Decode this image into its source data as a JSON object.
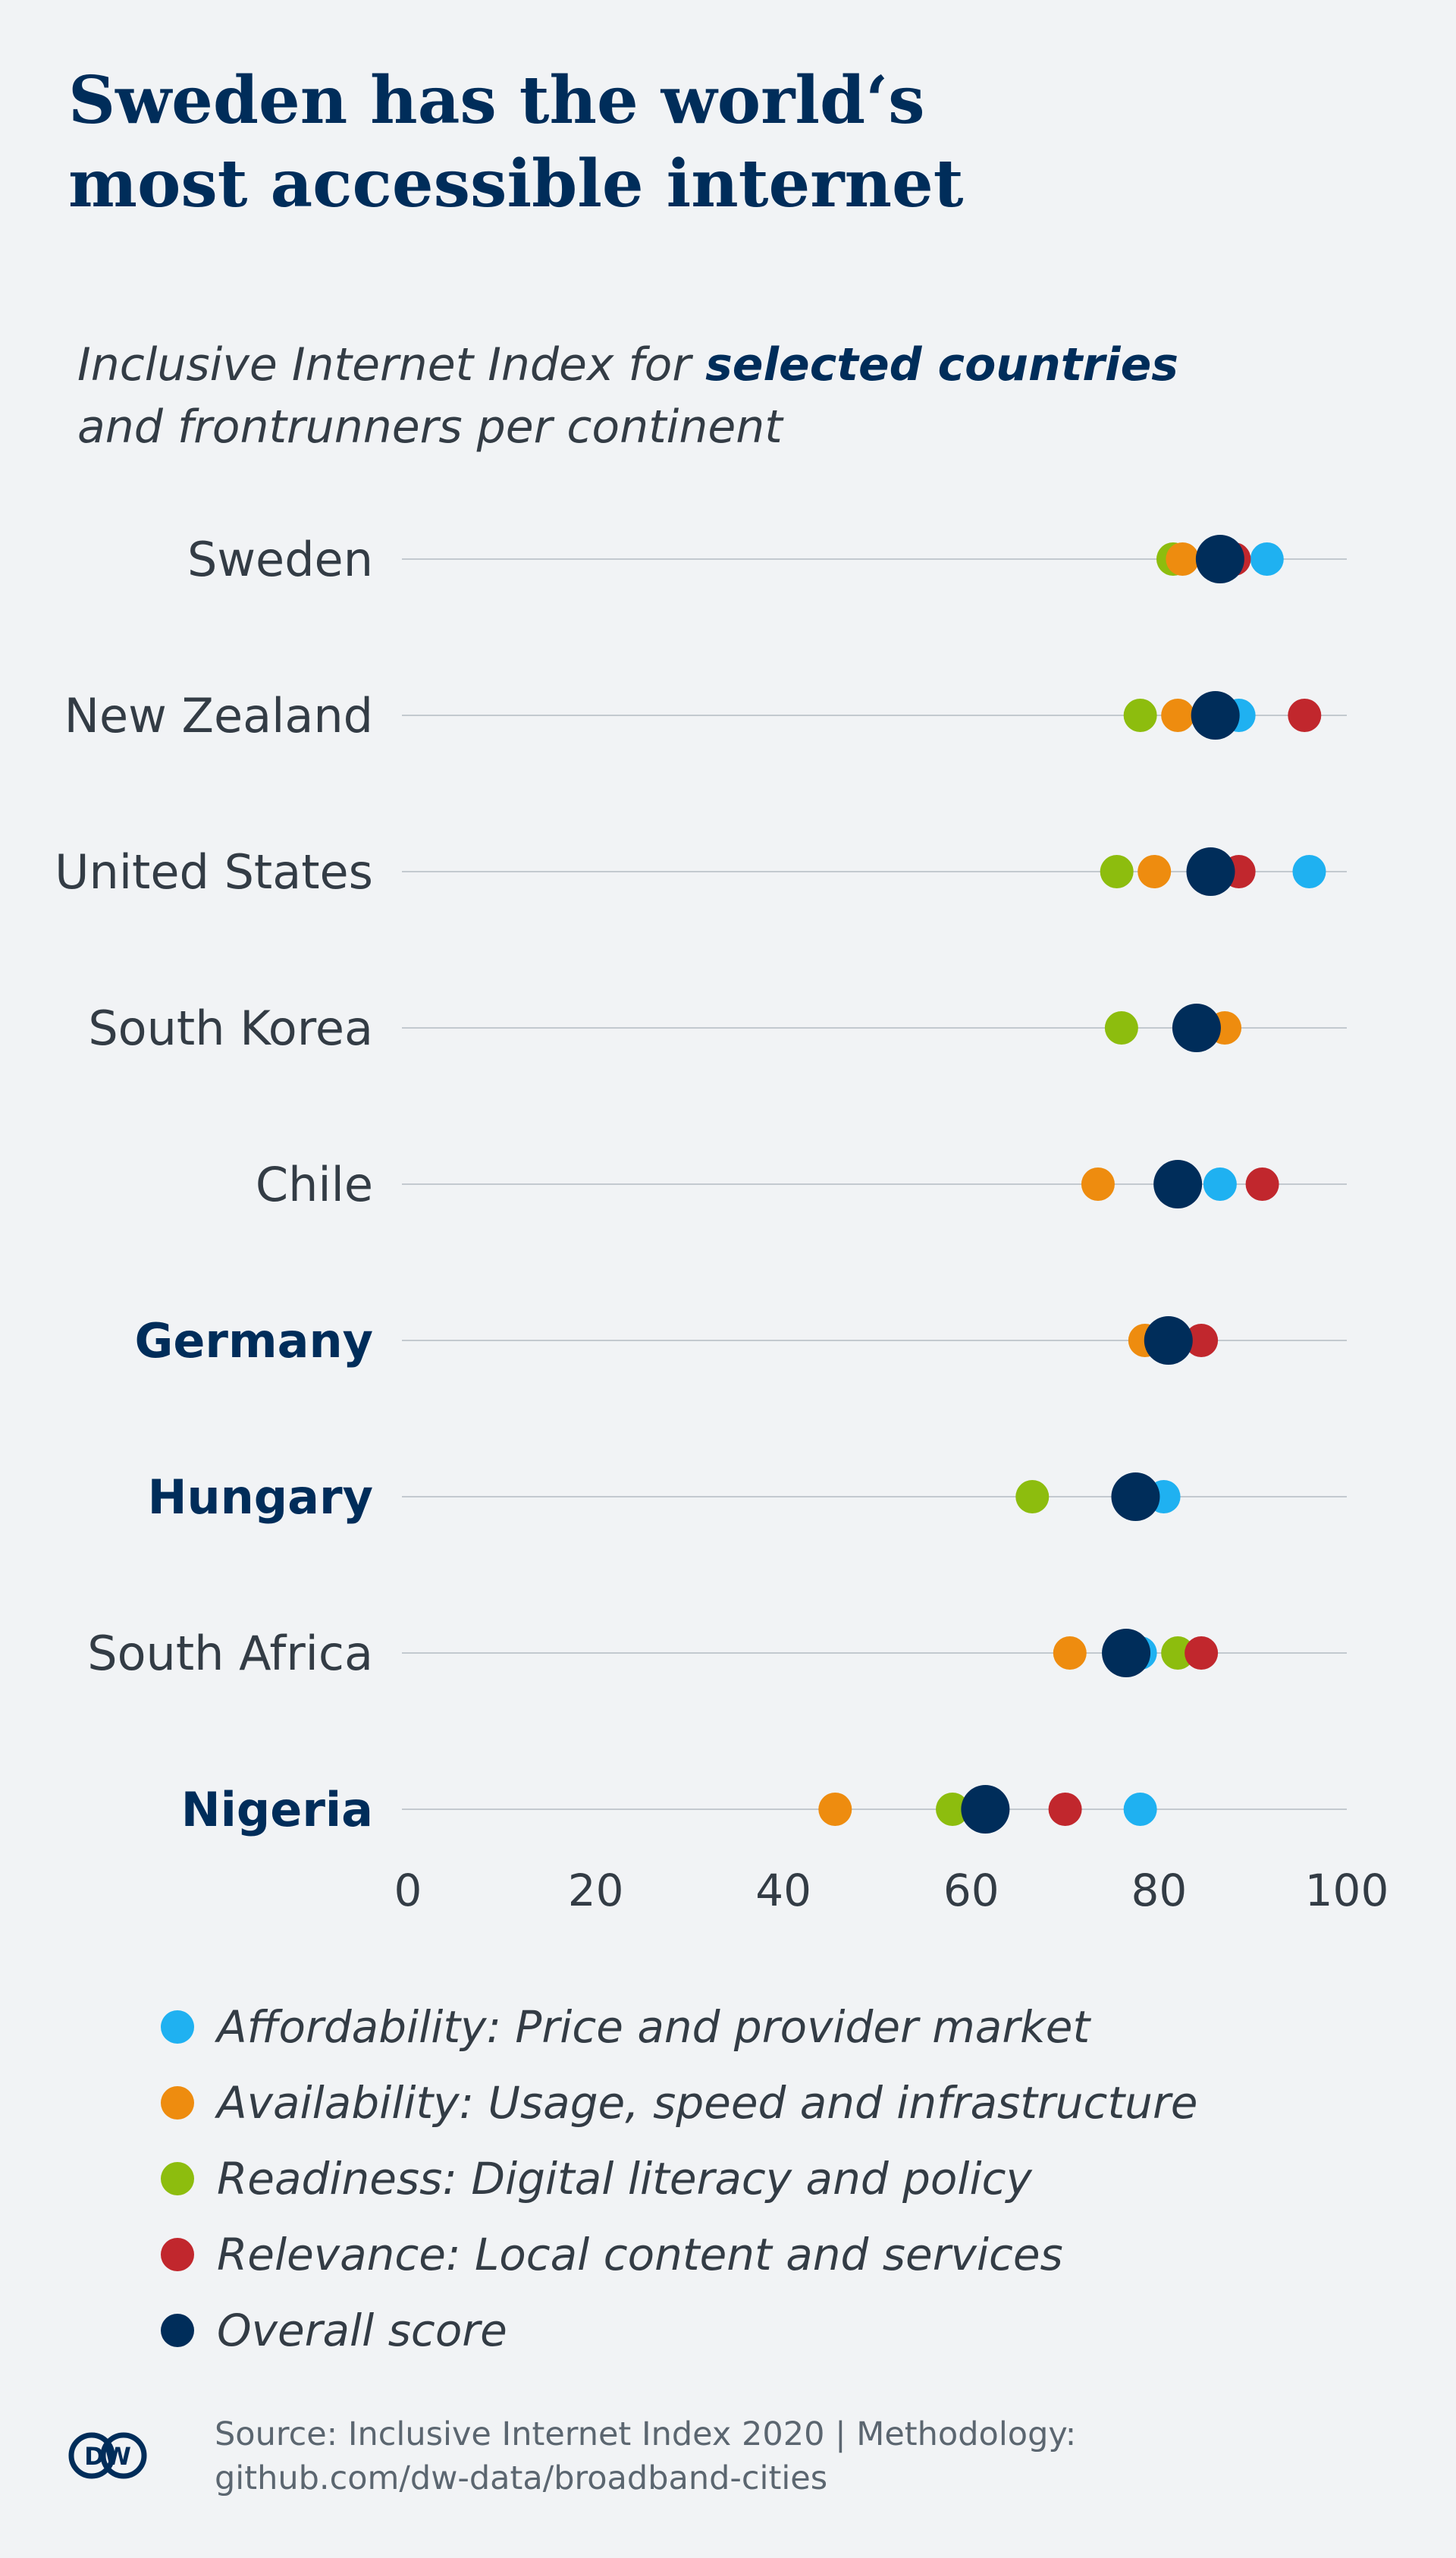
{
  "title_lines": [
    "Sweden has the world‘s",
    "most accessible internet"
  ],
  "subtitle": {
    "line1_prefix": "Inclusive Internet Index for ",
    "line1_bold": "selected countries",
    "line2": "and frontrunners per continent"
  },
  "colors": {
    "affordability": "#1fb1f1",
    "availability": "#ee8c0f",
    "readiness": "#8dbd0e",
    "relevance": "#c1272d",
    "overall": "#002d5a",
    "gridline": "#c3c9cf",
    "label": "#333c45",
    "highlight_label": "#002d5a"
  },
  "chart_data": {
    "type": "scatter",
    "xlim": [
      0,
      100
    ],
    "x_ticks": [
      0,
      20,
      40,
      60,
      80,
      100
    ],
    "grid": true,
    "legend_position": "bottom",
    "series": [
      {
        "key": "affordability",
        "name": "Affordability: Price and provider market"
      },
      {
        "key": "availability",
        "name": "Availability: Usage, speed and infrastructure"
      },
      {
        "key": "readiness",
        "name": "Readiness: Digital literacy and policy"
      },
      {
        "key": "relevance",
        "name": "Relevance: Local content and services"
      },
      {
        "key": "overall",
        "name": "Overall score"
      }
    ],
    "countries": [
      {
        "name": "Sweden",
        "highlight": false,
        "affordability": 91.5,
        "availability": 82.5,
        "readiness": 81.5,
        "relevance": 88,
        "overall": 86.5
      },
      {
        "name": "New Zealand",
        "highlight": false,
        "affordability": 88.5,
        "availability": 82,
        "readiness": 78,
        "relevance": 95.5,
        "overall": 86
      },
      {
        "name": "United States",
        "highlight": false,
        "affordability": 96,
        "availability": 79.5,
        "readiness": 75.5,
        "relevance": 88.5,
        "overall": 85.5
      },
      {
        "name": "South Korea",
        "highlight": false,
        "affordability": null,
        "availability": 87,
        "readiness": 76,
        "relevance": null,
        "overall": 84
      },
      {
        "name": "Chile",
        "highlight": false,
        "affordability": 86.5,
        "availability": 73.5,
        "readiness": null,
        "relevance": 91,
        "overall": 82
      },
      {
        "name": "Germany",
        "highlight": true,
        "affordability": null,
        "availability": 78.5,
        "readiness": null,
        "relevance": 84.5,
        "overall": 81
      },
      {
        "name": "Hungary",
        "highlight": true,
        "affordability": 80.5,
        "availability": null,
        "readiness": 66.5,
        "relevance": null,
        "overall": 77.5
      },
      {
        "name": "South Africa",
        "highlight": false,
        "affordability": 78,
        "availability": 70.5,
        "readiness": 82,
        "relevance": 84.5,
        "overall": 76.5
      },
      {
        "name": "Nigeria",
        "highlight": true,
        "affordability": 78,
        "availability": 45.5,
        "readiness": 58,
        "relevance": 70,
        "overall": 61.5
      }
    ]
  },
  "logo_text": "DW",
  "source_lines": [
    "Source: Inclusive Internet Index 2020 | Methodology:",
    "github.com/dw-data/broadband-cities"
  ]
}
